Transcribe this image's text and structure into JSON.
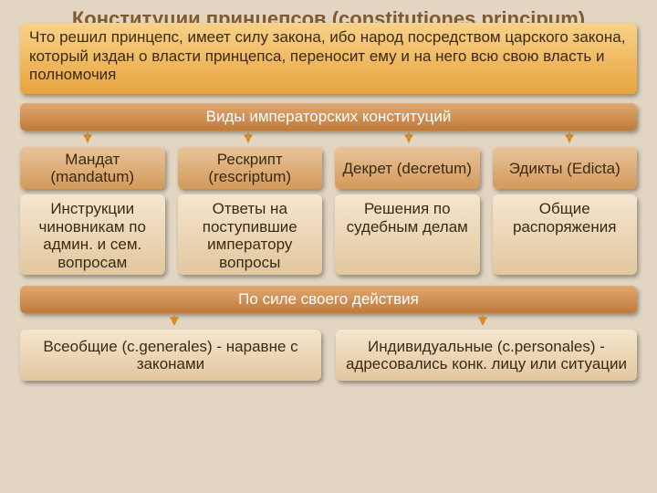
{
  "colors": {
    "slide_bg": "#e2d5c2",
    "title_color": "#7e5a2f",
    "quote_bg_top": "#f9d28a",
    "quote_bg_bot": "#e8a43d",
    "quote_text": "#3a2a10",
    "band_bg_top": "#e0a870",
    "band_bg_bot": "#c07a3a",
    "band_text": "#ffffff",
    "head_bg_top": "#e9c49a",
    "head_bg_bot": "#d39a5a",
    "head_text": "#3a2a10",
    "desc_bg_top": "#f5e6cf",
    "desc_bg_bot": "#e2c79e",
    "desc_text": "#3a2a10",
    "arrow_color": "#d88b2e"
  },
  "fonts": {
    "title_size": 22,
    "quote_size": 17,
    "band_size": 17,
    "head_size": 17,
    "desc_size": 17,
    "force_cell_size": 17
  },
  "layout": {
    "quote_height": 78,
    "band_height": 30,
    "head_height": 46,
    "desc_height": 88,
    "force_cell_height": 56,
    "arrows4_left_pct": [
      11,
      37,
      63,
      89
    ],
    "arrows2_left_pct": [
      25,
      75
    ]
  },
  "title": "Конституции принцепсов (constitutiones principum)",
  "quote": "Что решил принцепс, имеет силу закона, ибо народ посредством царского закона, который издан о власти принцепса, переносит ему и на него всю свою власть и полномочия",
  "band_types": "Виды императорских конституций",
  "types": [
    {
      "head": "Мандат (mandatum)",
      "desc": "Инструкции чиновникам по админ. и сем. вопросам"
    },
    {
      "head": "Рескрипт (rescriptum)",
      "desc": "Ответы на поступившие императору вопросы"
    },
    {
      "head": "Декрет (decretum)",
      "desc": "Решения по судебным делам"
    },
    {
      "head": "Эдикты (Edicta)",
      "desc": "Общие распоряжения"
    }
  ],
  "band_force": "По силе своего действия",
  "force": [
    "Всеобщие (c.generales) - наравне с законами",
    "Индивидуальные (c.personales) - адресовались конк. лицу или ситуации"
  ]
}
